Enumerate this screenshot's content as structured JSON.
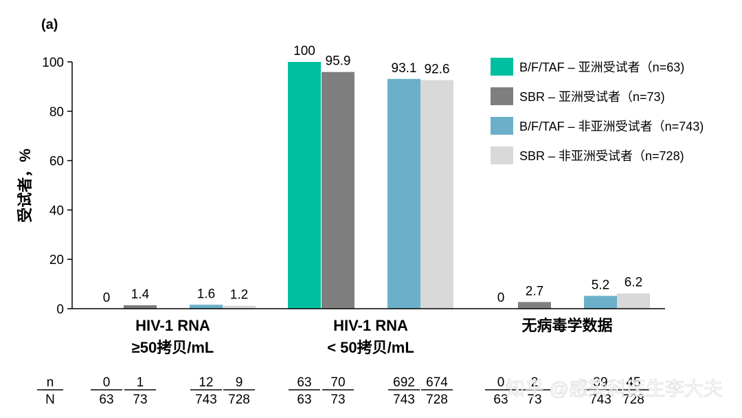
{
  "chart_data": {
    "type": "bar",
    "panel_label": "(a)",
    "ylabel": "受试者，%",
    "ylim": [
      0,
      100
    ],
    "yticks": [
      "0",
      "20",
      "40",
      "60",
      "80",
      "100"
    ],
    "categories": [
      [
        "HIV-1 RNA",
        "≥50拷贝/mL"
      ],
      [
        "HIV-1 RNA",
        "< 50拷贝/mL"
      ],
      [
        "无病毒学数据"
      ]
    ],
    "series": [
      {
        "name": "B/F/TAF – 亚洲受试者（n=63)",
        "color": "#00BFA0",
        "values": [
          0,
          100,
          0
        ],
        "labels": [
          "0",
          "100",
          "0"
        ],
        "n": [
          "0",
          "63",
          "0"
        ],
        "N": [
          "63",
          "63",
          "63"
        ]
      },
      {
        "name": "SBR – 亚洲受试者（n=73)",
        "color": "#7F7F7F",
        "values": [
          1.4,
          95.9,
          2.7
        ],
        "labels": [
          "1.4",
          "95.9",
          "2.7"
        ],
        "n": [
          "1",
          "70",
          "2"
        ],
        "N": [
          "73",
          "73",
          "73"
        ]
      },
      {
        "name": "B/F/TAF – 非亚洲受试者（n=743)",
        "color": "#6BB0C8",
        "values": [
          1.6,
          93.1,
          5.2
        ],
        "labels": [
          "1.6",
          "93.1",
          "5.2"
        ],
        "n": [
          "12",
          "692",
          "39"
        ],
        "N": [
          "743",
          "743",
          "743"
        ]
      },
      {
        "name": "SBR – 非亚洲受试者（n=728)",
        "color": "#D9D9D9",
        "values": [
          1.2,
          92.6,
          6.2
        ],
        "labels": [
          "1.2",
          "92.6",
          "6.2"
        ],
        "n": [
          "9",
          "674",
          "45"
        ],
        "N": [
          "728",
          "728",
          "728"
        ]
      }
    ],
    "n_row_label": "n",
    "N_row_label": "N",
    "legend_position": "top-right",
    "grid": false
  },
  "watermark": "知乎 @感染科医生李大夫"
}
